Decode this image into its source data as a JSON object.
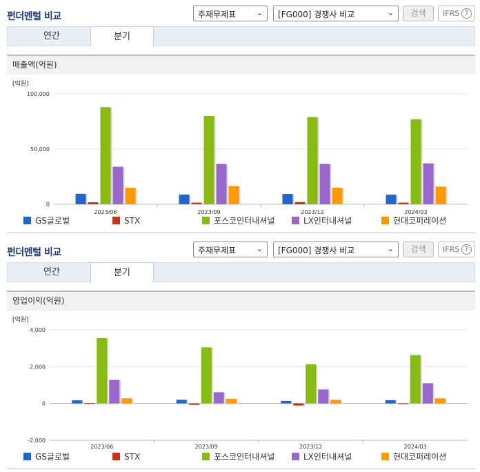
{
  "panels": [
    {
      "title": "펀더멘털 비교",
      "select_1": "주재무제표",
      "select_2": "[FG000] 경쟁사 비교",
      "search_label": "검색",
      "ifrs_label": "IFRS",
      "help_glyph": "?",
      "tabs": [
        {
          "label": "연간"
        },
        {
          "label": "분기"
        }
      ],
      "active_tab": 1,
      "subheader": "매출액(억원)"
    },
    {
      "title": "펀더멘털 비교",
      "select_1": "주재무제표",
      "select_2": "[FG000] 경쟁사 비교",
      "search_label": "검색",
      "ifrs_label": "IFRS",
      "help_glyph": "?",
      "tabs": [
        {
          "label": "연간"
        },
        {
          "label": "분기"
        }
      ],
      "active_tab": 1,
      "subheader": "영업이익(억원)"
    }
  ],
  "chart_data": [
    {
      "type": "bar",
      "unit_label": "[억원]",
      "categories": [
        "2023/06",
        "2023/09",
        "2023/12",
        "2024/03"
      ],
      "ylim": [
        0,
        100000
      ],
      "yticks": [
        0,
        50000,
        100000
      ],
      "ytick_labels": [
        "0",
        "50,000",
        "100,000"
      ],
      "grid": true,
      "legend_position": "bottom",
      "series": [
        {
          "name": "GS글로벌",
          "color": "#2266cc",
          "values": [
            9500,
            8800,
            9400,
            8700
          ]
        },
        {
          "name": "STX",
          "color": "#cc3311",
          "values": [
            1800,
            1500,
            2000,
            1500
          ]
        },
        {
          "name": "포스코인터내셔널",
          "color": "#88bb11",
          "values": [
            88000,
            80000,
            79000,
            77000
          ]
        },
        {
          "name": "LX인터내셔널",
          "color": "#9966cc",
          "values": [
            34000,
            36500,
            36500,
            37000
          ]
        },
        {
          "name": "현대코퍼레이션",
          "color": "#ff9900",
          "values": [
            15000,
            16500,
            15000,
            16000
          ]
        }
      ]
    },
    {
      "type": "bar",
      "unit_label": "[억원]",
      "categories": [
        "2023/06",
        "2023/09",
        "2023/12",
        "2024/03"
      ],
      "ylim": [
        -2000,
        4000
      ],
      "yticks": [
        -2000,
        0,
        2000,
        4000
      ],
      "ytick_labels": [
        "-2,000",
        "0",
        "2,000",
        "4,000"
      ],
      "grid": true,
      "legend_position": "bottom",
      "series": [
        {
          "name": "GS글로벌",
          "color": "#2266cc",
          "values": [
            170,
            200,
            140,
            180
          ]
        },
        {
          "name": "STX",
          "color": "#cc3311",
          "values": [
            20,
            -70,
            -110,
            10
          ]
        },
        {
          "name": "포스코인터내셔널",
          "color": "#88bb11",
          "values": [
            3550,
            3050,
            2130,
            2630
          ]
        },
        {
          "name": "LX인터내셔널",
          "color": "#9966cc",
          "values": [
            1280,
            610,
            760,
            1100
          ]
        },
        {
          "name": "현대코퍼레이션",
          "color": "#ff9900",
          "values": [
            280,
            250,
            200,
            280
          ]
        }
      ]
    }
  ]
}
